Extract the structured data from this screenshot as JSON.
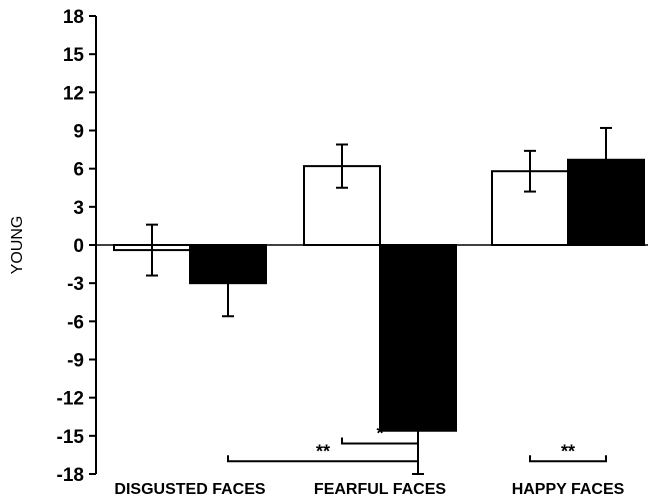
{
  "chart_data": {
    "type": "bar",
    "title": "",
    "xlabel": "",
    "ylabel": "YOUNG",
    "ylim": [
      -18,
      18
    ],
    "yticks": [
      18,
      15,
      12,
      9,
      6,
      3,
      0,
      -3,
      -6,
      -9,
      -12,
      -15,
      -18
    ],
    "categories": [
      "DISGUSTED FACES",
      "FEARFUL FACES",
      "HAPPY FACES"
    ],
    "series": [
      {
        "fill": "#ffffff",
        "values": [
          -0.4,
          6.2,
          5.8
        ],
        "errors": [
          2.0,
          1.7,
          1.6
        ]
      },
      {
        "fill": "#000000",
        "values": [
          -3.0,
          -14.6,
          6.7
        ],
        "errors": [
          2.6,
          3.4,
          2.5
        ]
      }
    ],
    "grid": false,
    "legend": "none",
    "annotations": [
      {
        "label": "**",
        "from": {
          "category": 0,
          "series": 1
        },
        "to": {
          "category": 1,
          "series": 1
        },
        "level": -17.0
      },
      {
        "label": "*",
        "from": {
          "category": 1,
          "series": 0
        },
        "to": {
          "category": 1,
          "series": 1
        },
        "level": -15.6
      },
      {
        "label": "**",
        "from": {
          "category": 2,
          "series": 0
        },
        "to": {
          "category": 2,
          "series": 1
        },
        "level": -17.0
      }
    ]
  }
}
